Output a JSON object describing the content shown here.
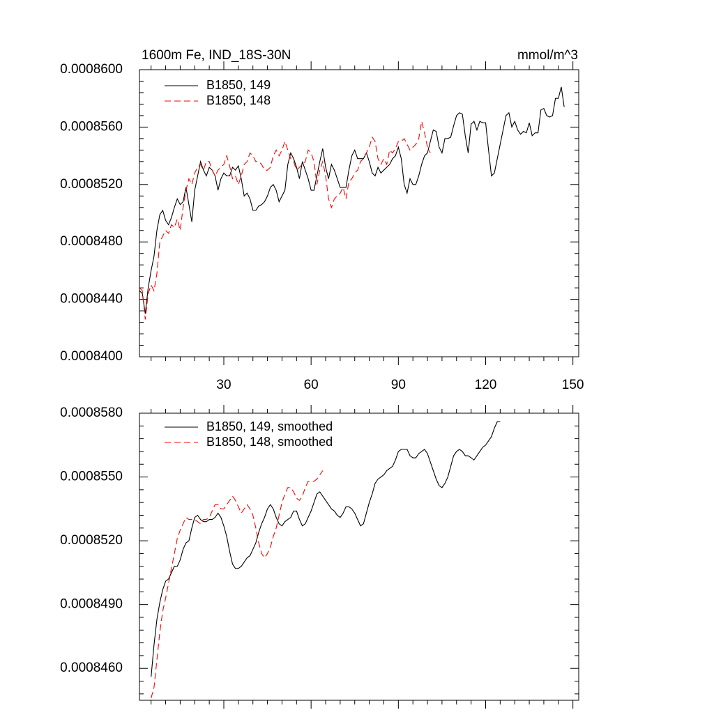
{
  "chart_data": [
    {
      "type": "line",
      "title": "1600m Fe, IND_18S-30N",
      "units": "mmol/m^3",
      "xlim": [
        1,
        152
      ],
      "ylim": [
        0.00084,
        0.00086
      ],
      "y_ticks": [
        0.00084,
        0.000844,
        0.000848,
        0.000852,
        0.000856,
        0.00086
      ],
      "y_tick_labels": [
        "0.0008400",
        "0.0008440",
        "0.0008480",
        "0.0008520",
        "0.0008560",
        "0.0008600"
      ],
      "x_ticks": [
        30,
        60,
        90,
        120,
        150
      ],
      "x_tick_labels": [
        "30",
        "60",
        "90",
        "120",
        "150"
      ],
      "grid": false,
      "legend_position": "top-left",
      "series": [
        {
          "name": "B1850, 149",
          "color": "#000000",
          "dash": "solid",
          "x_start": 1,
          "values": [
            0.0008446,
            0.0008444,
            0.000843,
            0.0008448,
            0.000846,
            0.000847,
            0.0008488,
            0.0008499,
            0.0008502,
            0.0008495,
            0.0008492,
            0.0008497,
            0.0008504,
            0.000851,
            0.0008506,
            0.0008508,
            0.0008518,
            0.0008506,
            0.0008494,
            0.0008516,
            0.0008526,
            0.0008536,
            0.000853,
            0.0008526,
            0.0008532,
            0.000853,
            0.0008526,
            0.0008516,
            0.0008524,
            0.0008528,
            0.0008526,
            0.0008526,
            0.0008532,
            0.000853,
            0.0008533,
            0.0008524,
            0.0008512,
            0.0008514,
            0.000851,
            0.0008502,
            0.0008502,
            0.0008505,
            0.0008506,
            0.0008508,
            0.0008512,
            0.0008518,
            0.000852,
            0.0008516,
            0.0008508,
            0.0008512,
            0.0008516,
            0.0008534,
            0.0008542,
            0.0008538,
            0.0008532,
            0.0008524,
            0.0008536,
            0.000853,
            0.0008524,
            0.0008516,
            0.0008516,
            0.0008526,
            0.0008536,
            0.0008545,
            0.0008532,
            0.0008524,
            0.0008534,
            0.000853,
            0.0008524,
            0.0008518,
            0.0008518,
            0.0008518,
            0.000853,
            0.000854,
            0.0008544,
            0.0008538,
            0.0008538,
            0.0008538,
            0.0008542,
            0.0008536,
            0.0008528,
            0.0008526,
            0.0008532,
            0.0008528,
            0.000853,
            0.0008532,
            0.0008534,
            0.0008538,
            0.000854,
            0.0008546,
            0.0008538,
            0.000852,
            0.0008514,
            0.0008524,
            0.000852,
            0.000852,
            0.0008526,
            0.0008534,
            0.000854,
            0.0008542,
            0.000855,
            0.0008558,
            0.0008557,
            0.0008546,
            0.0008542,
            0.0008552,
            0.0008552,
            0.0008553,
            0.0008561,
            0.0008568,
            0.000857,
            0.0008569,
            0.0008554,
            0.0008542,
            0.0008562,
            0.0008564,
            0.0008558,
            0.0008564,
            0.0008563,
            0.0008563,
            0.0008544,
            0.0008526,
            0.0008528,
            0.0008538,
            0.0008548,
            0.0008558,
            0.0008568,
            0.000857,
            0.000856,
            0.0008564,
            0.0008558,
            0.0008555,
            0.0008557,
            0.0008556,
            0.0008563,
            0.0008554,
            0.0008556,
            0.0008556,
            0.0008572,
            0.0008573,
            0.0008568,
            0.0008567,
            0.0008568,
            0.000858,
            0.000858,
            0.0008588,
            0.0008574
          ]
        },
        {
          "name": "B1850, 148",
          "color": "#ff0000",
          "dash": "dashed",
          "x_start": 1,
          "values": [
            0.0008448,
            0.0008446,
            0.0008426,
            0.0008444,
            0.000845,
            0.0008446,
            0.0008458,
            0.000848,
            0.0008484,
            0.0008488,
            0.0008486,
            0.0008492,
            0.000849,
            0.0008496,
            0.0008488,
            0.0008504,
            0.0008516,
            0.0008524,
            0.000852,
            0.0008528,
            0.0008532,
            0.0008534,
            0.000853,
            0.0008536,
            0.0008536,
            0.000853,
            0.0008526,
            0.000853,
            0.0008532,
            0.0008534,
            0.000854,
            0.0008533,
            0.0008524,
            0.0008526,
            0.000852,
            0.0008526,
            0.0008534,
            0.0008536,
            0.0008542,
            0.000854,
            0.0008536,
            0.0008536,
            0.0008534,
            0.000853,
            0.000853,
            0.0008532,
            0.000854,
            0.0008544,
            0.000854,
            0.0008544,
            0.000855,
            0.0008544,
            0.0008538,
            0.0008536,
            0.000853,
            0.0008532,
            0.0008534,
            0.0008536,
            0.0008544,
            0.0008542,
            0.0008536,
            0.000852,
            0.000853,
            0.0008536,
            0.0008526,
            0.000851,
            0.0008504,
            0.000851,
            0.0008512,
            0.0008514,
            0.0008518,
            0.000851,
            0.0008522,
            0.0008524,
            0.0008528,
            0.000853,
            0.0008536,
            0.0008538,
            0.0008542,
            0.0008546,
            0.0008553,
            0.000855,
            0.0008538,
            0.0008534,
            0.0008538,
            0.0008534,
            0.0008544,
            0.0008542,
            0.0008545,
            0.000855,
            0.000855,
            0.0008552,
            0.0008548,
            0.0008544,
            0.0008546,
            0.0008548,
            0.0008552,
            0.0008564,
            0.0008556,
            0.0008546,
            0.0008542
          ]
        }
      ]
    },
    {
      "type": "line",
      "xlim": [
        1,
        152
      ],
      "ylim": [
        0.0008445,
        0.000858
      ],
      "y_ticks": [
        0.000846,
        0.000849,
        0.000852,
        0.000855,
        0.000858
      ],
      "y_tick_labels": [
        "0.0008460",
        "0.0008490",
        "0.0008520",
        "0.0008550",
        "0.0008580"
      ],
      "x_ticks": [
        30,
        60,
        90,
        120,
        150
      ],
      "grid": false,
      "legend_position": "top-left",
      "series": [
        {
          "name": "B1850, 149, smoothed",
          "color": "#000000",
          "dash": "solid",
          "x_start": 5,
          "values": [
            0.0008456,
            0.0008471,
            0.0008483,
            0.0008491,
            0.0008497,
            0.0008501,
            0.0008502,
            0.0008505,
            0.0008508,
            0.0008508,
            0.0008511,
            0.0008516,
            0.0008519,
            0.000852,
            0.0008526,
            0.0008531,
            0.0008532,
            0.000853,
            0.0008529,
            0.0008529,
            0.000853,
            0.000853,
            0.0008531,
            0.0008533,
            0.0008531,
            0.0008527,
            0.0008522,
            0.0008515,
            0.0008509,
            0.0008507,
            0.0008507,
            0.0008508,
            0.000851,
            0.0008512,
            0.0008513,
            0.0008516,
            0.0008519,
            0.0008524,
            0.0008528,
            0.0008531,
            0.0008535,
            0.0008537,
            0.0008535,
            0.0008531,
            0.0008528,
            0.0008527,
            0.0008529,
            0.000853,
            0.0008531,
            0.0008534,
            0.0008534,
            0.000853,
            0.0008527,
            0.0008528,
            0.0008531,
            0.0008534,
            0.0008538,
            0.0008542,
            0.0008543,
            0.0008541,
            0.0008539,
            0.0008537,
            0.0008535,
            0.0008534,
            0.0008532,
            0.0008531,
            0.0008533,
            0.0008536,
            0.0008536,
            0.0008535,
            0.0008533,
            0.000853,
            0.0008527,
            0.0008528,
            0.0008533,
            0.0008538,
            0.0008542,
            0.0008547,
            0.0008549,
            0.000855,
            0.0008551,
            0.0008553,
            0.0008554,
            0.0008555,
            0.0008558,
            0.0008562,
            0.0008563,
            0.0008563,
            0.0008563,
            0.000856,
            0.0008559,
            0.0008559,
            0.0008561,
            0.0008562,
            0.0008563,
            0.0008561,
            0.0008557,
            0.0008553,
            0.0008549,
            0.0008546,
            0.0008545,
            0.0008547,
            0.000855,
            0.0008555,
            0.000856,
            0.0008562,
            0.0008563,
            0.0008562,
            0.000856,
            0.000856,
            0.0008559,
            0.0008558,
            0.000856,
            0.0008562,
            0.0008564,
            0.0008565,
            0.0008567,
            0.0008569,
            0.0008573,
            0.0008576,
            0.0008576
          ]
        },
        {
          "name": "B1850, 148, smoothed",
          "color": "#ff0000",
          "dash": "dashed",
          "x_start": 5,
          "values": [
            0.0008446,
            0.0008451,
            0.0008464,
            0.0008477,
            0.0008487,
            0.0008493,
            0.00085,
            0.0008507,
            0.0008514,
            0.0008521,
            0.0008525,
            0.0008528,
            0.0008531,
            0.000853,
            0.000853,
            0.000853,
            0.0008529,
            0.0008528,
            0.000853,
            0.000853,
            0.0008531,
            0.0008534,
            0.0008537,
            0.0008537,
            0.0008535,
            0.0008535,
            0.0008537,
            0.0008539,
            0.0008541,
            0.0008539,
            0.0008536,
            0.0008533,
            0.0008535,
            0.0008537,
            0.0008535,
            0.0008532,
            0.0008526,
            0.0008519,
            0.0008514,
            0.0008512,
            0.0008514,
            0.0008517,
            0.0008522,
            0.0008526,
            0.0008532,
            0.0008538,
            0.0008542,
            0.0008545,
            0.0008545,
            0.0008543,
            0.000854,
            0.0008539,
            0.0008541,
            0.0008545,
            0.0008548,
            0.0008548,
            0.0008548,
            0.0008549,
            0.0008551,
            0.0008553
          ]
        }
      ]
    }
  ]
}
